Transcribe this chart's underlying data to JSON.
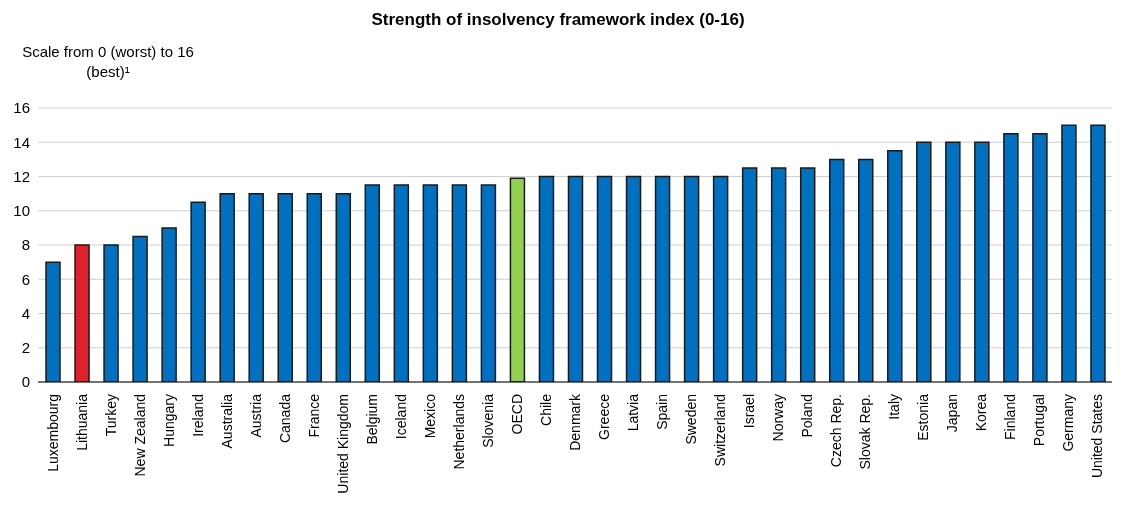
{
  "chart_data": {
    "type": "bar",
    "title": "Strength of insolvency framework index (0-16)",
    "ylabel": "Scale from 0 (worst) to 16 (best)¹",
    "categories": [
      "Luxembourg",
      "Lithuania",
      "Turkey",
      "New Zealand",
      "Hungary",
      "Ireland",
      "Australia",
      "Austria",
      "Canada",
      "France",
      "United Kingdom",
      "Belgium",
      "Iceland",
      "Mexico",
      "Netherlands",
      "Slovenia",
      "OECD",
      "Chile",
      "Denmark",
      "Greece",
      "Latvia",
      "Spain",
      "Sweden",
      "Switzerland",
      "Israel",
      "Norway",
      "Poland",
      "Czech Rep.",
      "Slovak Rep.",
      "Italy",
      "Estonia",
      "Japan",
      "Korea",
      "Finland",
      "Portugal",
      "Germany",
      "United States"
    ],
    "values": [
      7,
      8,
      8,
      8.5,
      9,
      10.5,
      11,
      11,
      11,
      11,
      11,
      11.5,
      11.5,
      11.5,
      11.5,
      11.5,
      11.9,
      12,
      12,
      12,
      12,
      12,
      12,
      12,
      12.5,
      12.5,
      12.5,
      13,
      13,
      13.5,
      14,
      14,
      14,
      14.5,
      14.5,
      15,
      15
    ],
    "colors": [
      "#0070c0",
      "#e0202a",
      "#0070c0",
      "#0070c0",
      "#0070c0",
      "#0070c0",
      "#0070c0",
      "#0070c0",
      "#0070c0",
      "#0070c0",
      "#0070c0",
      "#0070c0",
      "#0070c0",
      "#0070c0",
      "#0070c0",
      "#0070c0",
      "#92d050",
      "#0070c0",
      "#0070c0",
      "#0070c0",
      "#0070c0",
      "#0070c0",
      "#0070c0",
      "#0070c0",
      "#0070c0",
      "#0070c0",
      "#0070c0",
      "#0070c0",
      "#0070c0",
      "#0070c0",
      "#0070c0",
      "#0070c0",
      "#0070c0",
      "#0070c0",
      "#0070c0",
      "#0070c0",
      "#0070c0"
    ],
    "ylim": [
      0,
      16
    ],
    "yticks": [
      0,
      2,
      4,
      6,
      8,
      10,
      12,
      14,
      16
    ],
    "grid": "y"
  }
}
